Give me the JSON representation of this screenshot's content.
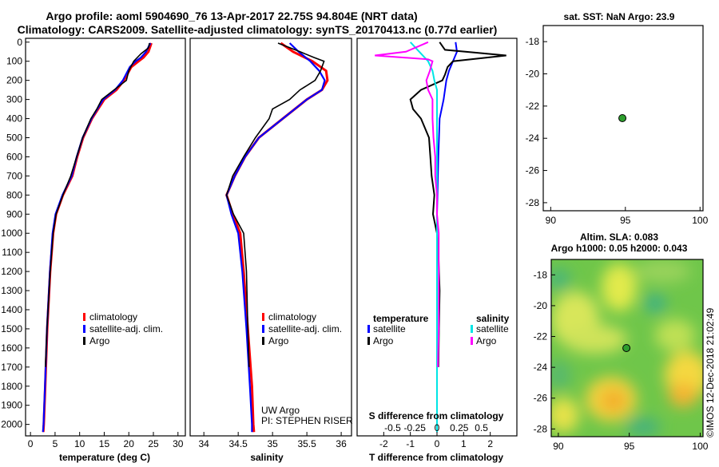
{
  "title_line1": "Argo profile: aoml 5904690_76 13-Apr-2017 22.75S 94.804E (NRT data)",
  "title_line2": "Climatology: CARS2009. Satellite-adjusted climatology: synTS_20170413.nc (0.77d earlier)",
  "depth_ticks": [
    "0",
    "100",
    "200",
    "300",
    "400",
    "500",
    "600",
    "700",
    "800",
    "900",
    "1000",
    "1100",
    "1200",
    "1300",
    "1400",
    "1500",
    "1600",
    "1700",
    "1800",
    "1900",
    "2000"
  ],
  "colors": {
    "climatology": "#ff0000",
    "satellite": "#0000ff",
    "argo": "#000000",
    "sal_satellite": "#00e5e5",
    "sal_argo": "#ff00ff",
    "float_marker": "#2e9e2e"
  },
  "chart_data": [
    {
      "type": "line",
      "name": "temperature",
      "xlabel": "temperature (deg C)",
      "ylabel": "depth",
      "xlim": [
        -1,
        31.5
      ],
      "ylim": [
        2060,
        -20
      ],
      "x_ticks": [
        "0",
        "5",
        "10",
        "15",
        "20",
        "25",
        "30"
      ],
      "legend": [
        "climatology",
        "satellite-adj. clim.",
        "Argo"
      ],
      "series": [
        {
          "name": "climatology",
          "depth": [
            5,
            50,
            80,
            100,
            130,
            200,
            250,
            300,
            400,
            500,
            600,
            700,
            800,
            900,
            1000,
            1200,
            1500,
            1800,
            2000,
            2040
          ],
          "values": [
            24.6,
            24,
            23,
            22,
            20.5,
            19,
            17.5,
            15,
            12.5,
            10.7,
            9.5,
            8.5,
            6.6,
            5.2,
            4.6,
            4.0,
            3.4,
            3.0,
            2.7,
            2.6
          ]
        },
        {
          "name": "satellite-adj. clim.",
          "depth": [
            5,
            50,
            80,
            100,
            130,
            200,
            250,
            300,
            400,
            500,
            600,
            700,
            800,
            900,
            1000,
            1200,
            1500,
            1800,
            2000,
            2040
          ],
          "values": [
            24.4,
            23.5,
            22.5,
            21.4,
            20.2,
            18.8,
            17.2,
            14.8,
            12.4,
            10.6,
            9.4,
            8.4,
            6.5,
            5.1,
            4.5,
            3.95,
            3.35,
            2.95,
            2.65,
            2.55
          ]
        },
        {
          "name": "Argo",
          "depth": [
            5,
            30,
            60,
            100,
            150,
            200,
            250,
            300,
            350,
            400,
            500,
            600,
            700,
            800,
            900,
            1000,
            1200,
            1500,
            1700
          ],
          "values": [
            24.2,
            24.0,
            22.5,
            21.0,
            20.0,
            19.5,
            17.0,
            14.5,
            13.5,
            12.3,
            10.6,
            9.4,
            8.2,
            6.6,
            5.2,
            4.6,
            4.0,
            3.35,
            3.05
          ]
        }
      ]
    },
    {
      "type": "line",
      "name": "salinity",
      "xlabel": "salinity",
      "ylabel": "depth",
      "xlim": [
        33.8,
        36.15
      ],
      "ylim": [
        2060,
        -20
      ],
      "x_ticks": [
        "34",
        "34.5",
        "35",
        "35.5",
        "36"
      ],
      "legend": [
        "climatology",
        "satellite-adj. clim.",
        "Argo"
      ],
      "annotations": [
        "UW Argo",
        "PI: STEPHEN RISER"
      ],
      "series": [
        {
          "name": "climatology",
          "depth": [
            5,
            50,
            100,
            150,
            200,
            250,
            300,
            400,
            500,
            600,
            700,
            800,
            900,
            1000,
            1200,
            1500,
            1800,
            2000,
            2040
          ],
          "values": [
            35.12,
            35.3,
            35.58,
            35.78,
            35.8,
            35.72,
            35.5,
            35.15,
            34.8,
            34.6,
            34.45,
            34.33,
            34.42,
            34.53,
            34.58,
            34.64,
            34.7,
            34.72,
            34.73
          ]
        },
        {
          "name": "satellite-adj. clim.",
          "depth": [
            5,
            50,
            100,
            150,
            200,
            250,
            300,
            400,
            500,
            600,
            700,
            800,
            900,
            1000,
            1200,
            1500,
            1800,
            2000,
            2040
          ],
          "values": [
            35.25,
            35.38,
            35.55,
            35.68,
            35.76,
            35.72,
            35.5,
            35.15,
            34.8,
            34.6,
            34.45,
            34.33,
            34.4,
            34.5,
            34.56,
            34.62,
            34.67,
            34.7,
            34.7
          ]
        },
        {
          "name": "Argo",
          "depth": [
            5,
            50,
            80,
            100,
            150,
            200,
            250,
            300,
            350,
            400,
            500,
            600,
            700,
            800,
            900,
            1000,
            1200,
            1500,
            1700
          ],
          "values": [
            35.08,
            35.4,
            35.6,
            35.75,
            35.7,
            35.62,
            35.4,
            35.25,
            35.0,
            34.95,
            34.75,
            34.58,
            34.42,
            34.33,
            34.43,
            34.58,
            34.62,
            34.64,
            34.66
          ]
        }
      ]
    },
    {
      "type": "line",
      "name": "difference",
      "xlabel": "T difference from climatology",
      "xlabel_top": "S difference from climatology",
      "ylim": [
        2060,
        -20
      ],
      "t_range": [
        -3.0,
        3.0
      ],
      "s_range": [
        -0.9,
        0.9
      ],
      "t_ticks": [
        "-2",
        "-1",
        "0",
        "1",
        "2"
      ],
      "s_ticks": [
        "-0.5",
        "-0.25",
        "0",
        "0.25",
        "0.5"
      ],
      "legend_temperature_title": "temperature",
      "legend_salinity_title": "salinity",
      "legend_temperature": [
        "satellite",
        "Argo"
      ],
      "legend_salinity": [
        "satellite",
        "Argo"
      ],
      "series": [
        {
          "name": "T satellite",
          "depth": [
            0,
            50,
            100,
            150,
            200,
            300,
            400,
            600,
            900,
            1200,
            1600,
            2040
          ],
          "values": [
            0.7,
            0.75,
            0.6,
            0.45,
            0.35,
            0.25,
            0.1,
            0.05,
            0.0,
            0.0,
            0.0,
            0.0
          ]
        },
        {
          "name": "T Argo",
          "depth": [
            0,
            40,
            70,
            100,
            130,
            170,
            200,
            250,
            300,
            350,
            400,
            500,
            600,
            700,
            800,
            900,
            1000,
            1100,
            1300,
            1700
          ],
          "values": [
            0.1,
            0.3,
            2.6,
            0.6,
            0.4,
            0.3,
            0.2,
            -0.6,
            -1.0,
            -0.9,
            -0.6,
            -0.3,
            -0.25,
            -0.2,
            -0.1,
            -0.15,
            0.0,
            0.05,
            0.1,
            0.05
          ]
        },
        {
          "name": "S satellite",
          "depth": [
            0,
            50,
            100,
            150,
            200,
            250,
            300,
            400,
            600,
            900,
            1200,
            1600,
            2040
          ],
          "values": [
            -0.3,
            -0.2,
            -0.1,
            -0.05,
            -0.03,
            0.0,
            0.0,
            0.0,
            0.0,
            0.0,
            0.0,
            0.0,
            0.0
          ]
        },
        {
          "name": "S Argo",
          "depth": [
            0,
            50,
            70,
            90,
            100,
            150,
            200,
            250,
            300,
            400,
            500,
            600,
            700,
            800,
            900,
            1000,
            1100,
            1300,
            1500,
            1700
          ],
          "values": [
            -0.1,
            -0.35,
            -0.7,
            -0.1,
            -0.05,
            -0.08,
            -0.12,
            -0.1,
            -0.05,
            -0.05,
            -0.04,
            -0.02,
            -0.02,
            0.0,
            0.0,
            0.02,
            0.02,
            0.02,
            0.02,
            0.01
          ]
        }
      ]
    },
    {
      "type": "scatter",
      "name": "sst_map",
      "title": "sat. SST: NaN Argo: 23.9",
      "xlim": [
        89.5,
        100.2
      ],
      "ylim": [
        -17,
        -28.5
      ],
      "x_ticks": [
        "90",
        "95",
        "100"
      ],
      "y_ticks": [
        "-18",
        "-20",
        "-22",
        "-24",
        "-26",
        "-28"
      ],
      "points": [
        {
          "lon": 94.8,
          "lat": -22.75
        }
      ]
    },
    {
      "type": "heatmap",
      "name": "sla_map",
      "title_line1": "Altim. SLA: 0.083",
      "title_line2": "Argo h1000: 0.05 h2000: 0.043",
      "xlim": [
        89.5,
        100.2
      ],
      "ylim": [
        -17,
        -28.5
      ],
      "x_ticks": [
        "90",
        "95",
        "100"
      ],
      "y_ticks": [
        "-18",
        "-20",
        "-22",
        "-24",
        "-26",
        "-28"
      ],
      "points": [
        {
          "lon": 94.8,
          "lat": -22.75
        }
      ]
    }
  ],
  "side_label": "©IMOS 12-Dec-2018 21:02:49"
}
